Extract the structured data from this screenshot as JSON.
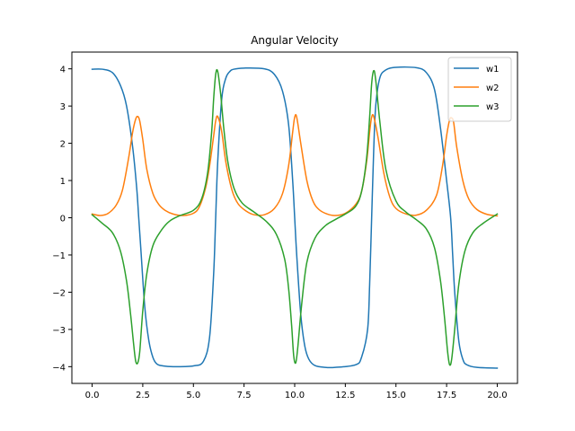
{
  "chart_data": {
    "type": "line",
    "title": "Angular Velocity",
    "xlabel": "",
    "ylabel": "",
    "xlim": [
      -1.0,
      21.0
    ],
    "ylim": [
      -4.45,
      4.45
    ],
    "xticks": [
      0.0,
      2.5,
      5.0,
      7.5,
      10.0,
      12.5,
      15.0,
      17.5,
      20.0
    ],
    "xtick_labels": [
      "0.0",
      "2.5",
      "5.0",
      "7.5",
      "10.0",
      "12.5",
      "15.0",
      "17.5",
      "20.0"
    ],
    "yticks": [
      -4,
      -3,
      -2,
      -1,
      0,
      1,
      2,
      3,
      4
    ],
    "ytick_labels": [
      "−4",
      "−3",
      "−2",
      "−1",
      "0",
      "1",
      "2",
      "3",
      "4"
    ],
    "grid": false,
    "legend_position": "top-right",
    "series": [
      {
        "name": "w1",
        "color": "#1f77b4",
        "x": [
          0.0,
          0.5,
          1.0,
          1.4,
          1.7,
          2.0,
          2.2,
          2.3,
          2.4,
          2.6,
          2.8,
          3.0,
          3.2,
          3.5,
          4.0,
          5.0,
          5.5,
          5.8,
          6.0,
          6.1,
          6.2,
          6.4,
          6.6,
          6.8,
          7.0,
          7.5,
          8.5,
          9.0,
          9.4,
          9.7,
          9.9,
          10.0,
          10.1,
          10.3,
          10.5,
          10.7,
          11.0,
          11.5,
          12.0,
          13.0,
          13.3,
          13.6,
          13.7,
          13.8,
          13.9,
          14.0,
          14.2,
          14.5,
          15.0,
          16.0,
          16.5,
          16.9,
          17.2,
          17.5,
          17.7,
          17.8,
          17.9,
          18.1,
          18.3,
          18.5,
          19.0,
          20.0
        ],
        "y": [
          3.99,
          3.99,
          3.9,
          3.55,
          3.0,
          1.9,
          0.8,
          0.0,
          -0.8,
          -2.4,
          -3.3,
          -3.75,
          -3.93,
          -3.98,
          -4.0,
          -3.98,
          -3.85,
          -3.2,
          -1.5,
          0.0,
          1.5,
          3.2,
          3.75,
          3.93,
          3.99,
          4.02,
          4.0,
          3.85,
          3.4,
          2.5,
          1.0,
          0.0,
          -1.0,
          -2.6,
          -3.45,
          -3.8,
          -3.97,
          -4.02,
          -4.02,
          -3.95,
          -3.75,
          -3.0,
          -1.8,
          0.0,
          1.8,
          3.0,
          3.75,
          3.97,
          4.04,
          4.03,
          3.9,
          3.45,
          2.4,
          1.0,
          0.0,
          -1.0,
          -2.0,
          -3.3,
          -3.8,
          -3.95,
          -4.02,
          -4.04
        ]
      },
      {
        "name": "w2",
        "color": "#ff7f0e",
        "x": [
          0.0,
          0.4,
          0.8,
          1.2,
          1.5,
          1.8,
          2.0,
          2.15,
          2.25,
          2.35,
          2.5,
          2.7,
          3.0,
          3.3,
          3.6,
          4.0,
          4.5,
          5.0,
          5.3,
          5.6,
          5.8,
          6.0,
          6.1,
          6.2,
          6.4,
          6.6,
          6.9,
          7.2,
          7.6,
          8.0,
          8.5,
          9.0,
          9.4,
          9.7,
          9.9,
          10.0,
          10.1,
          10.3,
          10.6,
          10.9,
          11.2,
          11.6,
          12.0,
          12.5,
          13.0,
          13.3,
          13.55,
          13.7,
          13.8,
          13.9,
          14.1,
          14.4,
          14.7,
          15.0,
          15.5,
          16.0,
          16.5,
          17.0,
          17.3,
          17.5,
          17.65,
          17.75,
          17.85,
          18.0,
          18.3,
          18.6,
          19.0,
          19.5,
          20.0
        ],
        "y": [
          0.1,
          0.06,
          0.12,
          0.35,
          0.75,
          1.6,
          2.3,
          2.65,
          2.72,
          2.6,
          2.1,
          1.3,
          0.65,
          0.35,
          0.2,
          0.1,
          0.06,
          0.12,
          0.3,
          0.8,
          1.4,
          2.2,
          2.6,
          2.72,
          2.3,
          1.5,
          0.75,
          0.38,
          0.18,
          0.08,
          0.08,
          0.25,
          0.65,
          1.4,
          2.3,
          2.7,
          2.7,
          2.0,
          1.0,
          0.45,
          0.22,
          0.1,
          0.06,
          0.12,
          0.35,
          0.7,
          1.5,
          2.3,
          2.7,
          2.72,
          2.2,
          1.2,
          0.55,
          0.25,
          0.1,
          0.07,
          0.2,
          0.6,
          1.4,
          2.2,
          2.63,
          2.68,
          2.55,
          1.9,
          1.0,
          0.5,
          0.22,
          0.09,
          0.05
        ]
      },
      {
        "name": "w3",
        "color": "#2ca02c",
        "x": [
          0.0,
          0.5,
          1.0,
          1.4,
          1.7,
          1.9,
          2.05,
          2.15,
          2.25,
          2.35,
          2.5,
          2.7,
          3.0,
          3.4,
          3.8,
          4.3,
          5.0,
          5.4,
          5.7,
          5.9,
          6.0,
          6.1,
          6.2,
          6.35,
          6.5,
          6.7,
          7.0,
          7.4,
          8.0,
          8.6,
          9.1,
          9.5,
          9.7,
          9.85,
          9.95,
          10.05,
          10.15,
          10.35,
          10.6,
          11.0,
          11.5,
          12.0,
          12.5,
          13.0,
          13.3,
          13.55,
          13.7,
          13.8,
          13.9,
          14.0,
          14.2,
          14.5,
          15.0,
          15.5,
          16.0,
          16.5,
          16.9,
          17.2,
          17.4,
          17.55,
          17.65,
          17.75,
          17.9,
          18.1,
          18.4,
          18.8,
          19.3,
          20.0
        ],
        "y": [
          0.08,
          -0.15,
          -0.4,
          -0.9,
          -1.7,
          -2.6,
          -3.4,
          -3.85,
          -3.9,
          -3.6,
          -2.5,
          -1.5,
          -0.75,
          -0.35,
          -0.1,
          0.05,
          0.2,
          0.5,
          1.2,
          2.3,
          3.2,
          3.85,
          3.93,
          3.3,
          2.4,
          1.5,
          0.8,
          0.4,
          0.15,
          -0.1,
          -0.45,
          -1.1,
          -1.9,
          -2.9,
          -3.7,
          -3.9,
          -3.5,
          -2.3,
          -1.2,
          -0.55,
          -0.22,
          -0.05,
          0.1,
          0.3,
          0.7,
          1.6,
          2.7,
          3.6,
          3.95,
          3.7,
          2.6,
          1.3,
          0.45,
          0.15,
          -0.05,
          -0.3,
          -0.8,
          -1.7,
          -2.7,
          -3.6,
          -3.95,
          -3.8,
          -3.0,
          -1.8,
          -0.9,
          -0.4,
          -0.15,
          0.1
        ]
      }
    ]
  }
}
